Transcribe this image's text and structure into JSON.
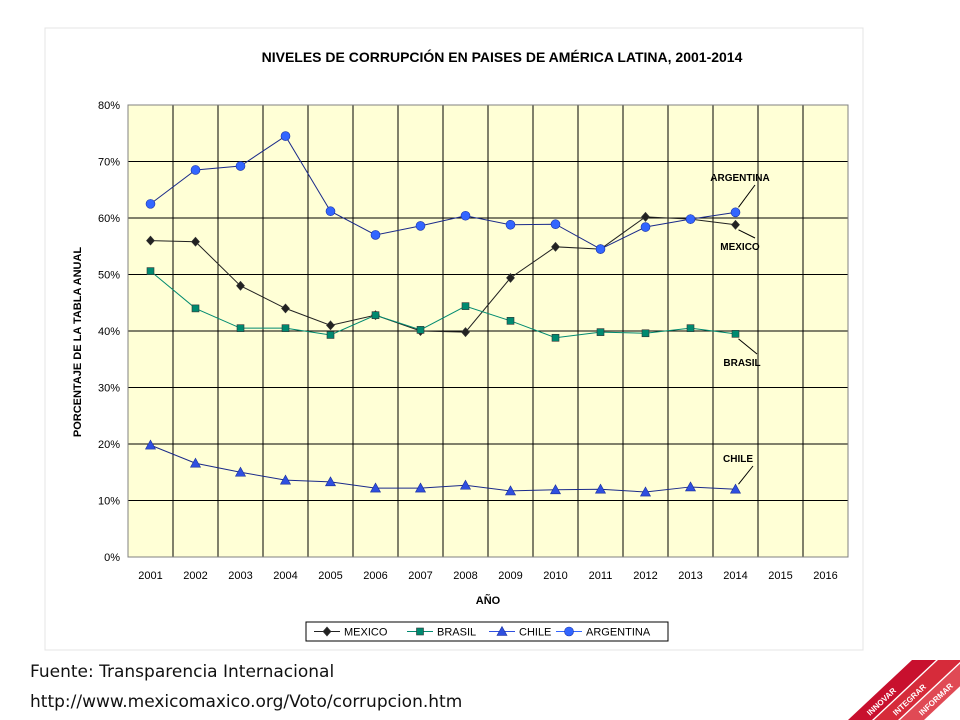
{
  "chart_data": {
    "type": "line",
    "title": "NIVELES DE CORRUPCIÓN EN  PAISES DE AMÉRICA LATINA, 2001-2014",
    "x_label": "AÑO",
    "y_label": "PORCENTAJE  DE LA TABLA ANUAL",
    "categories": [
      "2001",
      "2002",
      "2003",
      "2004",
      "2005",
      "2006",
      "2007",
      "2008",
      "2009",
      "2010",
      "2011",
      "2012",
      "2013",
      "2014",
      "2015",
      "2016"
    ],
    "ylim": [
      0,
      80
    ],
    "yticks": [
      {
        "value": 0,
        "label": "0%"
      },
      {
        "value": 10,
        "label": "10%"
      },
      {
        "value": 20,
        "label": "20%"
      },
      {
        "value": 30,
        "label": "30%"
      },
      {
        "value": 40,
        "label": "40%"
      },
      {
        "value": 50,
        "label": "50%"
      },
      {
        "value": 60,
        "label": "60%"
      },
      {
        "value": 70,
        "label": "70%"
      },
      {
        "value": 80,
        "label": "80%"
      }
    ],
    "grid": true,
    "legend": "bottom",
    "series": [
      {
        "name": "MEXICO",
        "color": "#222222",
        "marker": "diamond",
        "values": [
          56,
          55.8,
          48,
          44,
          41,
          42.8,
          40,
          39.8,
          49.4,
          54.9,
          54.5,
          60.2,
          59.8,
          58.8,
          null,
          null
        ]
      },
      {
        "name": "BRASIL",
        "color": "#008a70",
        "marker": "square",
        "values": [
          50.6,
          44,
          40.5,
          40.5,
          39.3,
          42.8,
          40.2,
          44.4,
          41.8,
          38.8,
          39.8,
          39.6,
          40.5,
          39.5,
          null,
          null
        ]
      },
      {
        "name": "CHILE",
        "color": "#2f4fe0",
        "marker": "triangle",
        "values": [
          19.8,
          16.6,
          15,
          13.6,
          13.3,
          12.2,
          12.2,
          12.7,
          11.7,
          11.9,
          12,
          11.5,
          12.4,
          12,
          null,
          null
        ]
      },
      {
        "name": "ARGENTINA",
        "color": "#3366ff",
        "marker": "circle",
        "values": [
          62.5,
          68.5,
          69.2,
          74.5,
          61.2,
          57,
          58.6,
          60.4,
          58.8,
          58.9,
          54.5,
          58.4,
          59.8,
          61,
          null,
          null
        ]
      }
    ],
    "annotations": [
      "ARGENTINA",
      "MEXICO",
      "BRASIL",
      "CHILE"
    ]
  },
  "footer": {
    "source": "Fuente: Transparencia Internacional",
    "url": "http://www.mexicomaxico.org/Voto/corrupcion.htm"
  },
  "logo": [
    "INNOVAR",
    "INTEGRAR",
    "INFORMAR"
  ]
}
